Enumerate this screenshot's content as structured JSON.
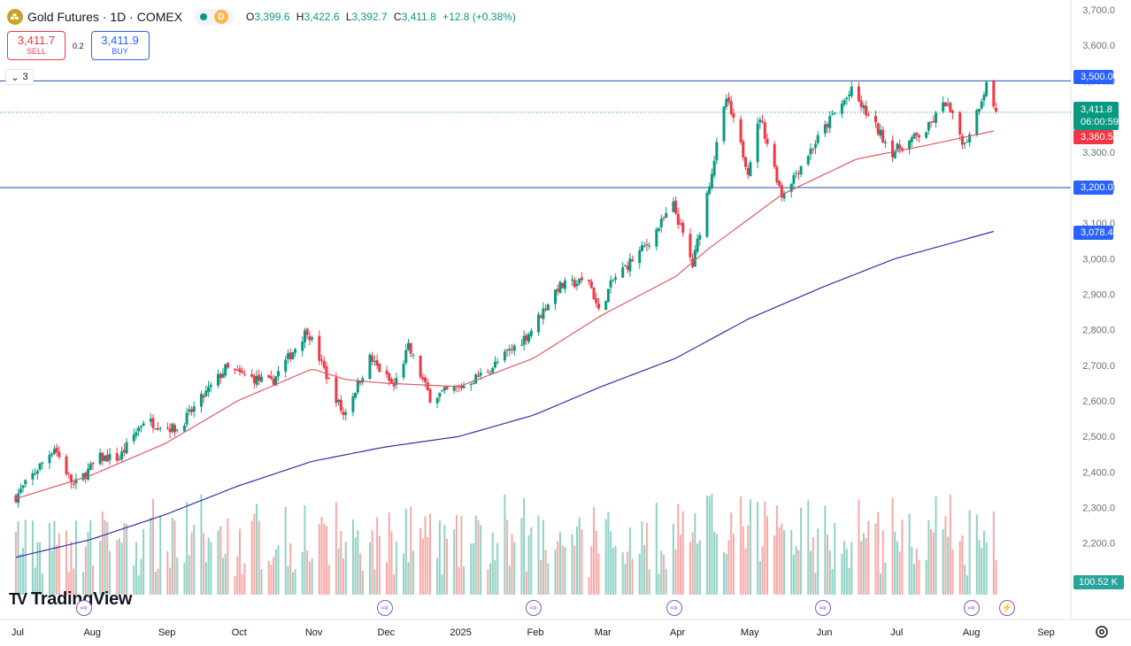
{
  "header": {
    "title": "Gold Futures · 1D · COMEX",
    "badge": "D",
    "open_label": "O",
    "open": "3,399.6",
    "high_label": "H",
    "high": "3,422.6",
    "low_label": "L",
    "low": "3,392.7",
    "close_label": "C",
    "close": "3,411.8",
    "change": "+12.8 (+0.38%)"
  },
  "trade": {
    "sell_price": "3,411.7",
    "sell_label": "SELL",
    "spread": "0.2",
    "buy_price": "3,411.9",
    "buy_label": "BUY"
  },
  "collapse_count": "3",
  "logo_text": "TradingView",
  "price_tags": {
    "resistance": "3,500.0",
    "last": "3,411.8",
    "countdown": "06:00:59",
    "ma50": "3,360.5",
    "support": "3,200.0",
    "ma200": "3,078.4",
    "volume": "100.52 K"
  },
  "colors": {
    "up": "#089981",
    "down": "#f23645",
    "up_vol": "#90d1c5",
    "down_vol": "#f7a9a7",
    "ma50": "#e05a5f",
    "ma200": "#3131a8",
    "hline": "#2a4bb3",
    "accent": "#2962ff"
  },
  "chart_data": {
    "type": "candlestick",
    "yticks": [
      "3,700.0",
      "3,600.0",
      "3,500.0",
      "3,400.0",
      "3,300.0",
      "3,200.0",
      "3,100.0",
      "3,000.0",
      "2,900.0",
      "2,800.0",
      "2,700.0",
      "2,600.0",
      "2,500.0",
      "2,400.0",
      "2,300.0",
      "2,200.0",
      "2,100.0"
    ],
    "ytick_values": [
      3700,
      3600,
      3500,
      3400,
      3300,
      3200,
      3100,
      3000,
      2900,
      2800,
      2700,
      2600,
      2500,
      2400,
      2300,
      2200,
      2100
    ],
    "xlabels": [
      {
        "label": "Jul",
        "x": "2024-07"
      },
      {
        "label": "Aug",
        "x": "2024-08"
      },
      {
        "label": "Sep",
        "x": "2024-09"
      },
      {
        "label": "Oct",
        "x": "2024-10"
      },
      {
        "label": "Nov",
        "x": "2024-11"
      },
      {
        "label": "Dec",
        "x": "2024-12"
      },
      {
        "label": "2025",
        "x": "2025-01"
      },
      {
        "label": "Feb",
        "x": "2025-02"
      },
      {
        "label": "Mar",
        "x": "2025-03"
      },
      {
        "label": "Apr",
        "x": "2025-04"
      },
      {
        "label": "May",
        "x": "2025-05"
      },
      {
        "label": "Jun",
        "x": "2025-06"
      },
      {
        "label": "Jul",
        "x": "2025-07"
      },
      {
        "label": "Aug",
        "x": "2025-08"
      },
      {
        "label": "Sep",
        "x": "2025-09"
      }
    ],
    "ylim": [
      2060,
      3720
    ],
    "horizontal_lines": [
      3500,
      3200
    ],
    "last_price": 3411.8,
    "close_path": [
      [
        "2024-07-01",
        2330
      ],
      [
        "2024-07-17",
        2470
      ],
      [
        "2024-07-25",
        2360
      ],
      [
        "2024-08-05",
        2440
      ],
      [
        "2024-08-13",
        2440
      ],
      [
        "2024-08-23",
        2545
      ],
      [
        "2024-09-06",
        2520
      ],
      [
        "2024-09-26",
        2690
      ],
      [
        "2024-10-04",
        2670
      ],
      [
        "2024-10-15",
        2650
      ],
      [
        "2024-10-30",
        2800
      ],
      [
        "2024-11-14",
        2560
      ],
      [
        "2024-11-25",
        2720
      ],
      [
        "2024-12-05",
        2640
      ],
      [
        "2024-12-11",
        2750
      ],
      [
        "2024-12-20",
        2610
      ],
      [
        "2025-01-02",
        2640
      ],
      [
        "2025-01-14",
        2690
      ],
      [
        "2025-01-30",
        2790
      ],
      [
        "2025-02-11",
        2920
      ],
      [
        "2025-02-24",
        2940
      ],
      [
        "2025-02-28",
        2850
      ],
      [
        "2025-03-06",
        2940
      ],
      [
        "2025-03-20",
        3040
      ],
      [
        "2025-03-31",
        3150
      ],
      [
        "2025-04-08",
        2980
      ],
      [
        "2025-04-22",
        3450
      ],
      [
        "2025-05-01",
        3250
      ],
      [
        "2025-05-06",
        3400
      ],
      [
        "2025-05-15",
        3180
      ],
      [
        "2025-06-05",
        3400
      ],
      [
        "2025-06-13",
        3470
      ],
      [
        "2025-06-30",
        3300
      ],
      [
        "2025-07-14",
        3360
      ],
      [
        "2025-07-22",
        3440
      ],
      [
        "2025-07-30",
        3320
      ],
      [
        "2025-08-08",
        3490
      ],
      [
        "2025-08-12",
        3411.8
      ]
    ],
    "ma50_path": [
      [
        "2024-07-01",
        2325
      ],
      [
        "2024-08-01",
        2390
      ],
      [
        "2024-09-01",
        2480
      ],
      [
        "2024-10-01",
        2600
      ],
      [
        "2024-11-01",
        2690
      ],
      [
        "2024-11-15",
        2660
      ],
      [
        "2024-12-01",
        2650
      ],
      [
        "2025-01-01",
        2640
      ],
      [
        "2025-02-01",
        2720
      ],
      [
        "2025-03-01",
        2840
      ],
      [
        "2025-04-01",
        2950
      ],
      [
        "2025-04-15",
        3030
      ],
      [
        "2025-05-15",
        3180
      ],
      [
        "2025-06-15",
        3280
      ],
      [
        "2025-07-15",
        3320
      ],
      [
        "2025-08-12",
        3360.5
      ]
    ],
    "ma200_path": [
      [
        "2024-07-01",
        2160
      ],
      [
        "2024-08-01",
        2210
      ],
      [
        "2024-09-01",
        2280
      ],
      [
        "2024-10-01",
        2360
      ],
      [
        "2024-11-01",
        2430
      ],
      [
        "2024-12-01",
        2470
      ],
      [
        "2025-01-01",
        2500
      ],
      [
        "2025-02-01",
        2560
      ],
      [
        "2025-03-01",
        2640
      ],
      [
        "2025-04-01",
        2720
      ],
      [
        "2025-05-01",
        2830
      ],
      [
        "2025-06-01",
        2920
      ],
      [
        "2025-07-01",
        3000
      ],
      [
        "2025-08-12",
        3078.4
      ]
    ],
    "volume_note": "relative daily volume bars; last volume 100.52 K"
  }
}
